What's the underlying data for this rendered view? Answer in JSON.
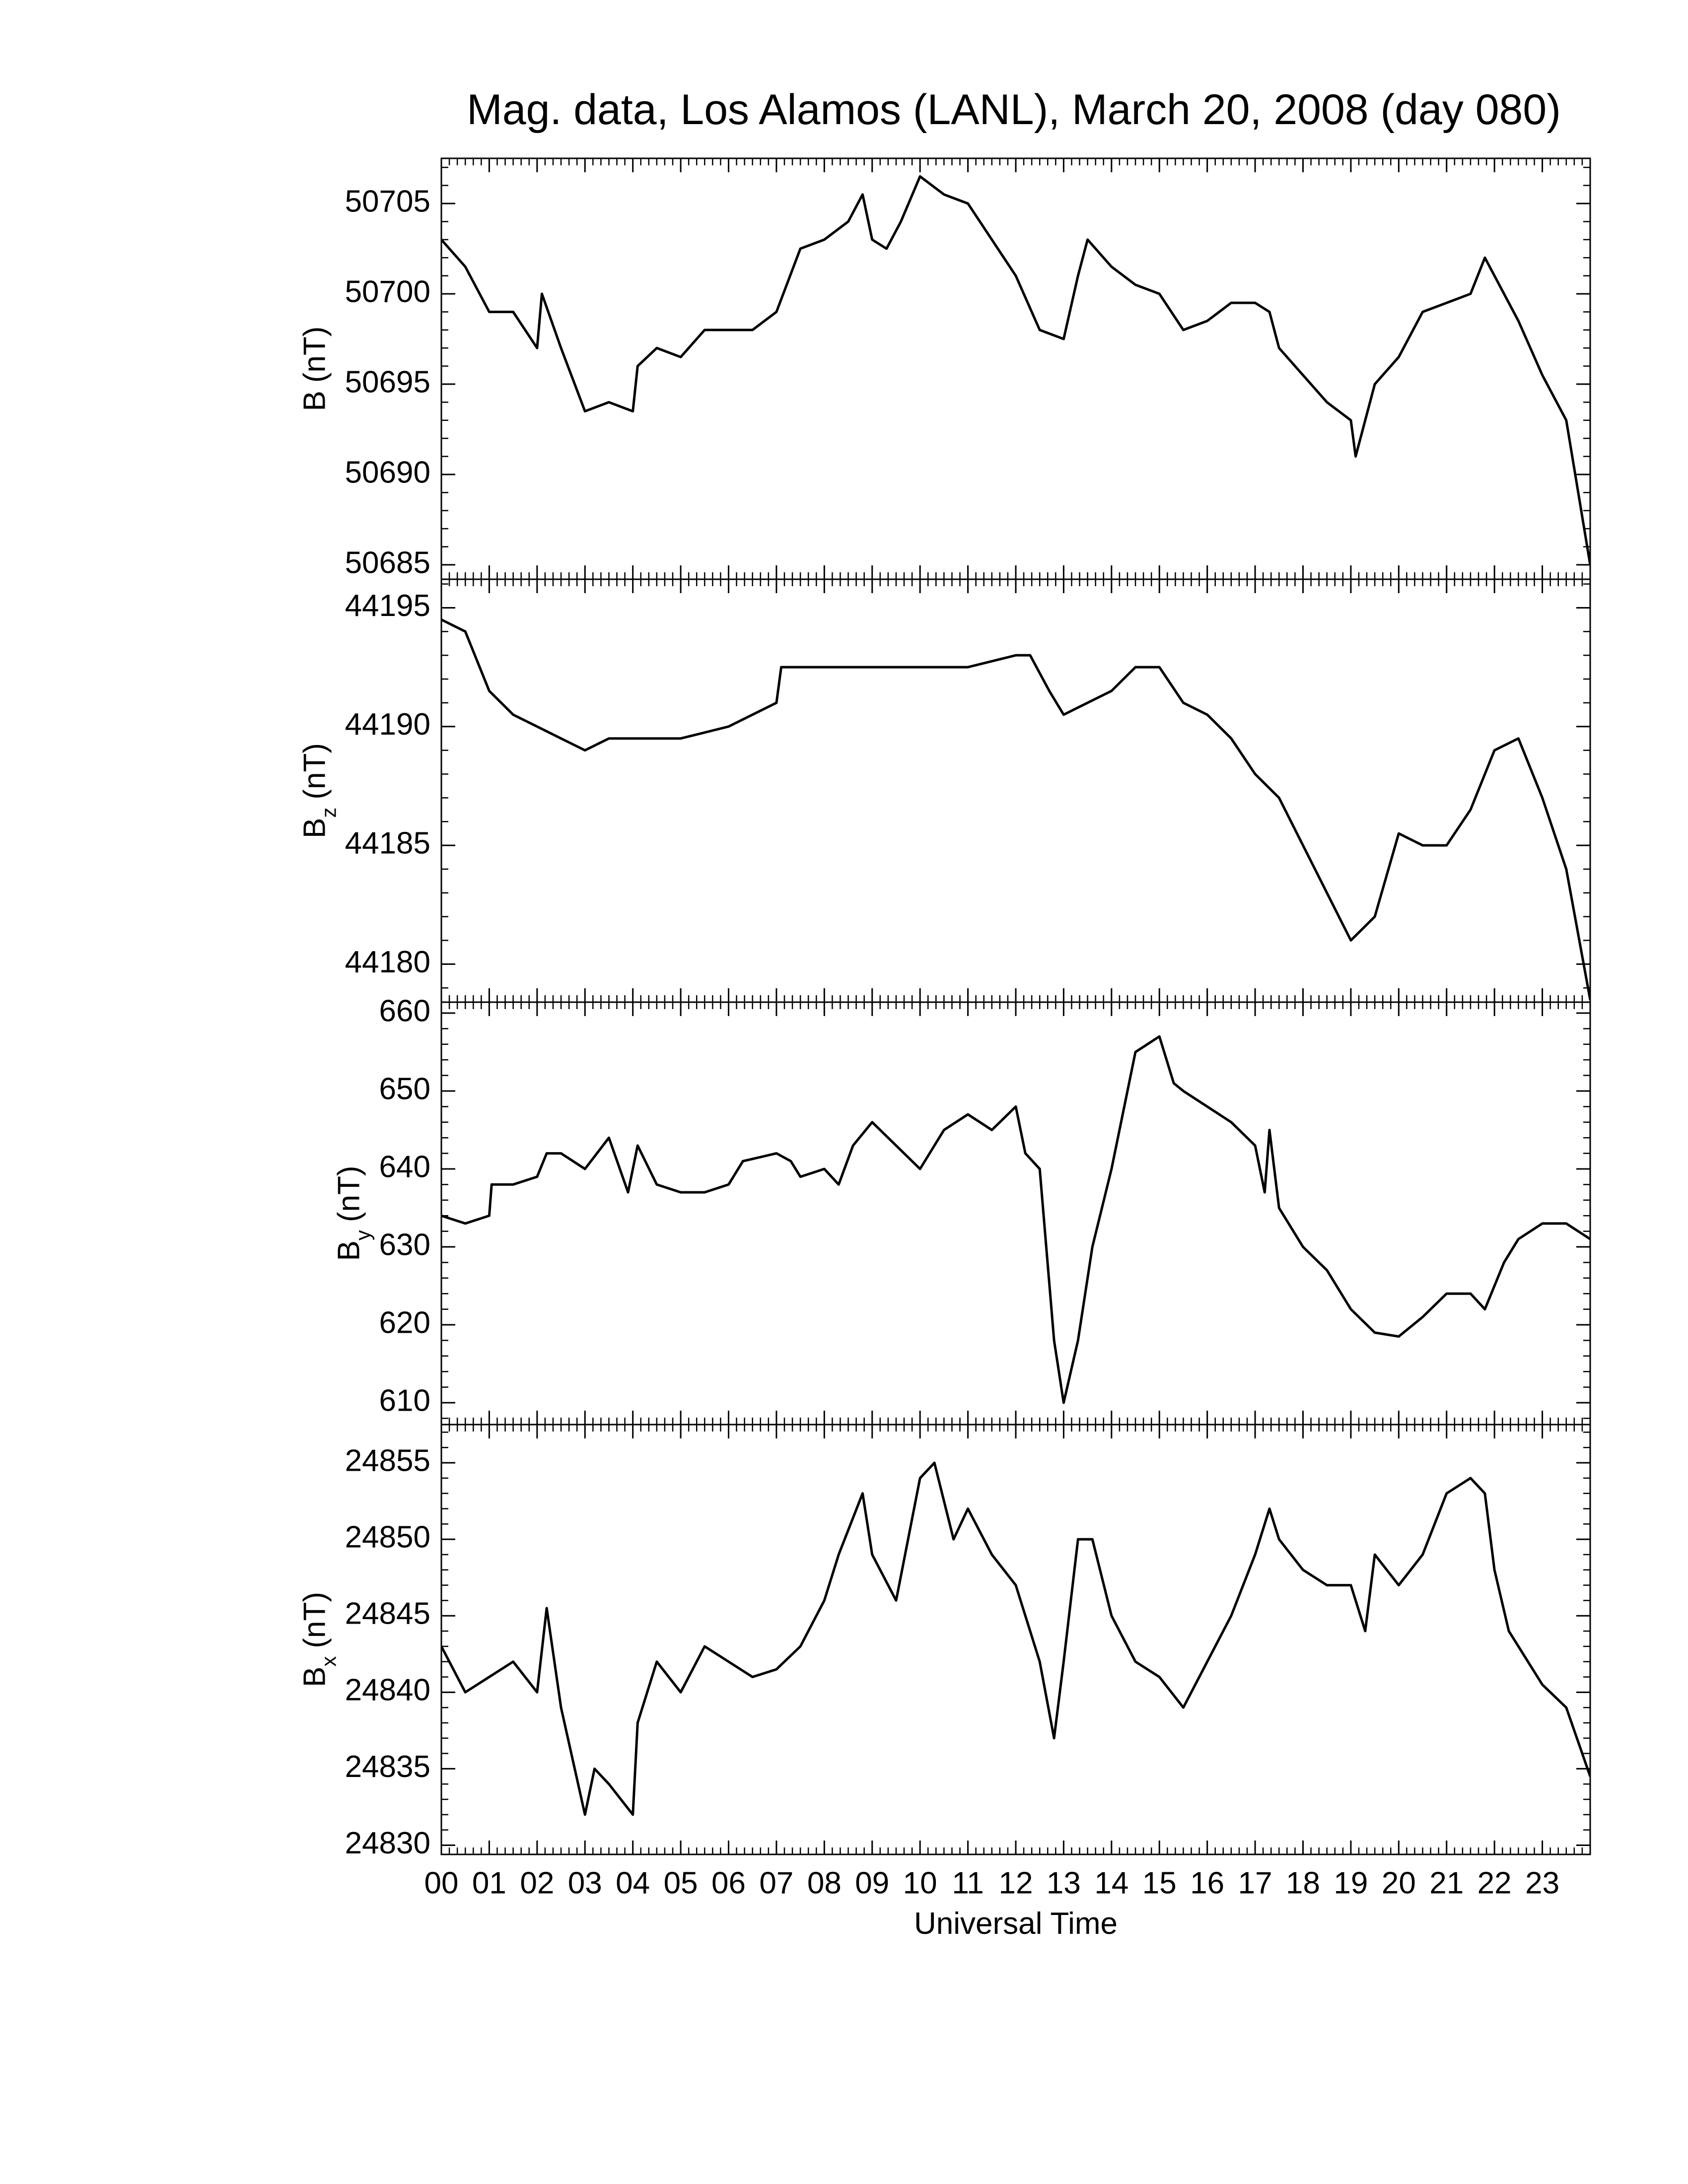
{
  "chart_data": [
    {
      "type": "line",
      "title": "Mag. data, Los Alamos (LANL), March 20, 2008 (day 080)",
      "ylabel": {
        "symbol": "B",
        "unit": "(nT)"
      },
      "ylim": [
        50684.2,
        50707.5
      ],
      "yticks": [
        50685,
        50690,
        50695,
        50700,
        50705
      ],
      "series": [
        {
          "color": "#000000",
          "x": [
            0,
            0.5,
            1,
            1.5,
            2,
            2.1,
            2.5,
            3,
            3.5,
            4,
            4.1,
            4.5,
            5,
            5.5,
            6,
            6.5,
            7,
            7.5,
            8,
            8.5,
            8.8,
            9,
            9.3,
            9.6,
            10,
            10.5,
            11,
            11.5,
            12,
            12.5,
            13,
            13.3,
            13.5,
            14,
            14.5,
            15,
            15.5,
            16,
            16.5,
            17,
            17.3,
            17.5,
            18,
            18.5,
            19,
            19.1,
            19.5,
            20,
            20.5,
            21,
            21.5,
            21.8,
            22,
            22.5,
            23,
            23.5,
            24
          ],
          "values": [
            50703,
            50701.5,
            50699,
            50699,
            50697,
            50700,
            50697,
            50693.5,
            50694,
            50693.5,
            50696,
            50697,
            50696.5,
            50698,
            50698,
            50698,
            50699,
            50702.5,
            50703,
            50704,
            50705.5,
            50703,
            50702.5,
            50704,
            50706.5,
            50705.5,
            50705,
            50703,
            50701,
            50698,
            50697.5,
            50701,
            50703,
            50701.5,
            50700.5,
            50700,
            50698,
            50698.5,
            50699.5,
            50699.5,
            50699,
            50697,
            50695.5,
            50694,
            50693,
            50691,
            50695,
            50696.5,
            50699,
            50699.5,
            50700,
            50702,
            50701,
            50698.5,
            50695.5,
            50693,
            50685
          ]
        }
      ]
    },
    {
      "type": "line",
      "ylabel": {
        "symbol": "B",
        "subscript": "z",
        "unit": "(nT)"
      },
      "ylim": [
        44178.4,
        44196.2
      ],
      "yticks": [
        44180,
        44185,
        44190,
        44195
      ],
      "series": [
        {
          "color": "#000000",
          "x": [
            0,
            0.5,
            1,
            1.5,
            2,
            2.5,
            3,
            3.5,
            4,
            5,
            6,
            7,
            7.1,
            8,
            9,
            10,
            11,
            12,
            12.3,
            12.7,
            13,
            13.5,
            14,
            14.5,
            15,
            15.5,
            16,
            16.5,
            17,
            17.5,
            18,
            18.5,
            19,
            19.5,
            20,
            20.5,
            21,
            21.5,
            22,
            22.5,
            23,
            23.5,
            24
          ],
          "values": [
            44194.5,
            44194,
            44191.5,
            44190.5,
            44190,
            44189.5,
            44189,
            44189.5,
            44189.5,
            44189.5,
            44190,
            44191,
            44192.5,
            44192.5,
            44192.5,
            44192.5,
            44192.5,
            44193,
            44193,
            44191.5,
            44190.5,
            44191,
            44191.5,
            44192.5,
            44192.5,
            44191,
            44190.5,
            44189.5,
            44188,
            44187,
            44185,
            44183,
            44181,
            44182,
            44185.5,
            44185,
            44185,
            44186.5,
            44189,
            44189.5,
            44187,
            44184,
            44178.5
          ]
        }
      ]
    },
    {
      "type": "line",
      "ylabel": {
        "symbol": "B",
        "subscript": "y",
        "unit": "(nT)"
      },
      "ylim": [
        607.2,
        661.4
      ],
      "yticks": [
        610,
        620,
        630,
        640,
        650,
        660
      ],
      "series": [
        {
          "color": "#000000",
          "x": [
            0,
            0.5,
            1,
            1.05,
            1.5,
            2,
            2.2,
            2.5,
            3,
            3.5,
            3.9,
            4.1,
            4.5,
            5,
            5.5,
            6,
            6.3,
            7,
            7.3,
            7.5,
            8,
            8.3,
            8.6,
            9,
            9.5,
            10,
            10.5,
            11,
            11.5,
            12,
            12.2,
            12.5,
            12.8,
            13,
            13.3,
            13.6,
            14,
            14.5,
            15,
            15.3,
            15.5,
            16,
            16.5,
            17,
            17.2,
            17.3,
            17.5,
            18,
            18.5,
            19,
            19.5,
            20,
            20.5,
            21,
            21.5,
            21.8,
            22.2,
            22.5,
            23,
            23.5,
            24
          ],
          "values": [
            634,
            633,
            634,
            638,
            638,
            639,
            642,
            642,
            640,
            644,
            637,
            643,
            638,
            637,
            637,
            638,
            641,
            642,
            641,
            639,
            640,
            638,
            643,
            646,
            643,
            640,
            645,
            647,
            645,
            648,
            642,
            640,
            618,
            610,
            618,
            630,
            640,
            655,
            657,
            651,
            650,
            648,
            646,
            643,
            637,
            645,
            635,
            630,
            627,
            622,
            619,
            618.5,
            621,
            624,
            624,
            622,
            628,
            631,
            633,
            633,
            631
          ]
        }
      ]
    },
    {
      "type": "line",
      "ylabel": {
        "symbol": "B",
        "subscript": "x",
        "unit": "(nT)"
      },
      "xlabel": "Universal Time",
      "xlim": [
        0,
        24
      ],
      "xticks": [
        {
          "value": 0,
          "label": "00"
        },
        {
          "value": 1,
          "label": "01"
        },
        {
          "value": 2,
          "label": "02"
        },
        {
          "value": 3,
          "label": "03"
        },
        {
          "value": 4,
          "label": "04"
        },
        {
          "value": 5,
          "label": "05"
        },
        {
          "value": 6,
          "label": "06"
        },
        {
          "value": 7,
          "label": "07"
        },
        {
          "value": 8,
          "label": "08"
        },
        {
          "value": 9,
          "label": "09"
        },
        10,
        11,
        12,
        13,
        14,
        15,
        16,
        17,
        18,
        19,
        20,
        21,
        22,
        23
      ],
      "ylim": [
        24829.4,
        24857.5
      ],
      "yticks": [
        24830,
        24835,
        24840,
        24845,
        24850,
        24855
      ],
      "series": [
        {
          "color": "#000000",
          "x": [
            0,
            0.5,
            1,
            1.5,
            2,
            2.2,
            2.5,
            3,
            3.2,
            3.5,
            4,
            4.1,
            4.5,
            5,
            5.5,
            6,
            6.5,
            7,
            7.5,
            8,
            8.3,
            8.8,
            9,
            9.5,
            10,
            10.3,
            10.7,
            11,
            11.5,
            12,
            12.5,
            12.8,
            13,
            13.3,
            13.6,
            14,
            14.5,
            15,
            15.5,
            16,
            16.5,
            17,
            17.3,
            17.5,
            18,
            18.5,
            19,
            19.3,
            19.5,
            20,
            20.5,
            21,
            21.5,
            21.8,
            22,
            22.3,
            22.5,
            23,
            23.5,
            24
          ],
          "values": [
            24843,
            24840,
            24841,
            24842,
            24840,
            24845.5,
            24839,
            24832,
            24835,
            24834,
            24832,
            24838,
            24842,
            24840,
            24843,
            24842,
            24841,
            24841.5,
            24843,
            24846,
            24849,
            24853,
            24849,
            24846,
            24854,
            24855,
            24850,
            24852,
            24849,
            24847,
            24842,
            24837,
            24842,
            24850,
            24850,
            24845,
            24842,
            24841,
            24839,
            24842,
            24845,
            24849,
            24852,
            24850,
            24848,
            24847,
            24847,
            24844,
            24849,
            24847,
            24849,
            24853,
            24854,
            24853,
            24848,
            24844,
            24843,
            24840.5,
            24839,
            24834.5
          ]
        }
      ]
    }
  ]
}
